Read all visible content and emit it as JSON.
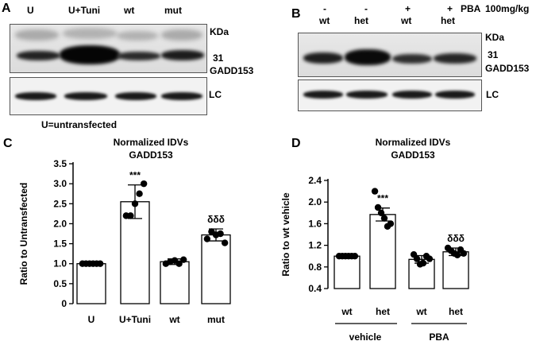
{
  "panelA": {
    "letter": "A",
    "lanes": [
      "U",
      "U+Tuni",
      "wt",
      "mut"
    ],
    "kda": "KDa",
    "mw": "31",
    "protein": "GADD153",
    "lc": "LC",
    "footnote": "U=untransfected"
  },
  "panelB": {
    "letter": "B",
    "pba_signs": [
      "-",
      "-",
      "+",
      "+"
    ],
    "pba_label": "PBA",
    "dose": "100mg/kg",
    "lanes": [
      "wt",
      "het",
      "wt",
      "het"
    ],
    "kda": "KDa",
    "mw": "31",
    "protein": "GADD153",
    "lc": "LC"
  },
  "chart_data": [
    {
      "panel": "C",
      "type": "bar",
      "title": "Normalized IDVs",
      "subtitle": "GADD153",
      "ylabel": "Ratio to Untransfected",
      "xlabel": "",
      "ylim": [
        0,
        3.5
      ],
      "yticks": [
        "0",
        "0.5",
        "1.0",
        "1.5",
        "2.0",
        "2.5",
        "3.0",
        "3.5"
      ],
      "categories": [
        "U",
        "U+Tuni",
        "wt",
        "mut"
      ],
      "values": [
        1.0,
        2.55,
        1.05,
        1.72
      ],
      "errors": [
        0.0,
        0.42,
        0.07,
        0.15
      ],
      "points": [
        [
          1.0,
          1.0,
          1.0,
          1.0,
          1.0,
          1.0
        ],
        [
          2.2,
          2.2,
          2.5,
          2.75,
          3.0
        ],
        [
          1.0,
          1.05,
          1.08,
          1.0,
          1.1
        ],
        [
          1.62,
          1.8,
          1.72,
          1.75,
          1.52
        ]
      ],
      "annotations": [
        "",
        "***",
        "",
        "δδδ"
      ],
      "grid": false
    },
    {
      "panel": "D",
      "type": "bar",
      "title": "Normalized IDVs",
      "subtitle": "GADD153",
      "ylabel": "Ratio to wt vehicle",
      "xlabel": "",
      "ylim": [
        0.4,
        2.4
      ],
      "yticks": [
        "0.4",
        "0.8",
        "1.2",
        "1.6",
        "2.0",
        "2.4"
      ],
      "categories": [
        "wt",
        "het",
        "wt",
        "het"
      ],
      "groups": [
        "vehicle",
        "PBA"
      ],
      "values": [
        1.0,
        1.77,
        0.94,
        1.08
      ],
      "errors": [
        0.0,
        0.12,
        0.07,
        0.07
      ],
      "points": [
        [
          1.0,
          1.0,
          1.0,
          1.0,
          1.0,
          1.0
        ],
        [
          2.2,
          1.9,
          1.8,
          1.7,
          1.55,
          1.6
        ],
        [
          1.03,
          0.95,
          0.85,
          0.87,
          1.0,
          0.95
        ],
        [
          1.15,
          1.1,
          1.05,
          1.02,
          1.12,
          1.05
        ]
      ],
      "annotations": [
        "",
        "***",
        "",
        "δδδ"
      ],
      "grid": false
    }
  ]
}
